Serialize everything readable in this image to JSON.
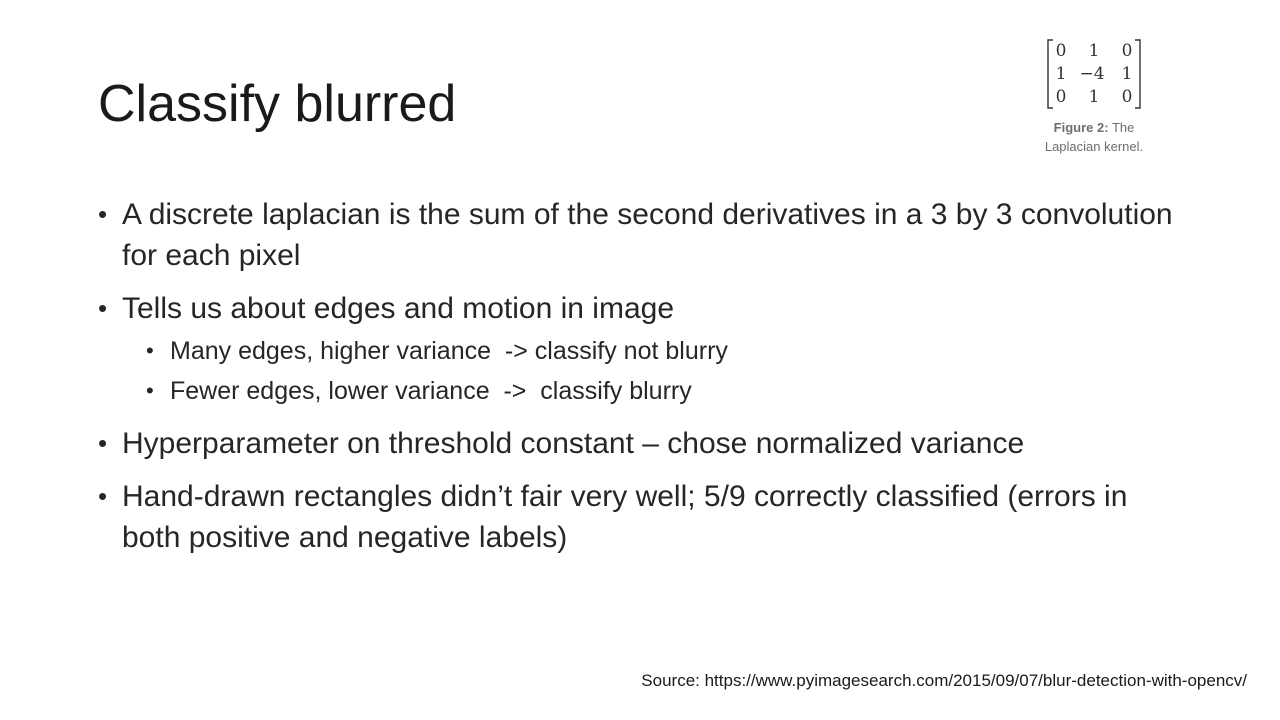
{
  "slide": {
    "title": "Classify blurred",
    "bullets": [
      "A discrete laplacian is the sum of the second derivatives in a 3 by 3 convolution for each pixel",
      "Tells us about edges and motion in image",
      "Hyperparameter on threshold constant – chose normalized variance",
      "Hand-drawn rectangles didn’t fair very well; 5/9 correctly classified (errors in both positive and negative labels)"
    ],
    "sub_bullets": [
      "Many edges, higher variance  -> classify not blurry",
      "Fewer edges, lower variance  ->  classify blurry"
    ],
    "figure": {
      "matrix": [
        [
          "0",
          "1",
          "0"
        ],
        [
          "1",
          "−4",
          "1"
        ],
        [
          "0",
          "1",
          "0"
        ]
      ],
      "caption_label": "Figure 2:",
      "caption_text": "The Laplacian kernel."
    },
    "source": "Source: https://www.pyimagesearch.com/2015/09/07/blur-detection-with-opencv/"
  }
}
